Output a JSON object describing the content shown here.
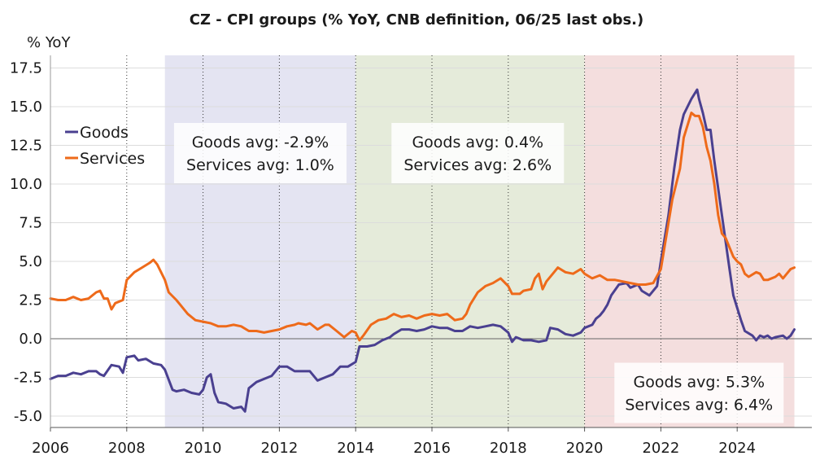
{
  "chart_data": {
    "type": "line",
    "title": "CZ - CPI groups (% YoY, CNB definition, 06/25 last obs.)",
    "ylabel": "% YoY",
    "xlim": [
      2006.0,
      2025.7
    ],
    "ylim": [
      -5.5,
      18.3
    ],
    "xticks": [
      2006,
      2008,
      2010,
      2012,
      2014,
      2016,
      2018,
      2020,
      2022,
      2024
    ],
    "yticks": [
      -5.0,
      -2.5,
      0.0,
      2.5,
      5.0,
      7.5,
      10.0,
      12.5,
      15.0,
      17.5
    ],
    "ytick_labels": [
      "-5.0",
      "-2.5",
      "0.0",
      "2.5",
      "5.0",
      "7.5",
      "10.0",
      "12.5",
      "15.0",
      "17.5"
    ],
    "grid": "vertical dotted at year ticks, horizontal light",
    "legend": "top-left",
    "regions": [
      {
        "x0": 2009.0,
        "x1": 2014.0,
        "color": "#e4e4f2"
      },
      {
        "x0": 2014.0,
        "x1": 2020.0,
        "color": "#e5ebda"
      },
      {
        "x0": 2020.0,
        "x1": 2025.5,
        "color": "#f4dede"
      }
    ],
    "annotations": [
      {
        "lines": [
          "Goods avg: -2.9%",
          "Services avg: 1.0%"
        ],
        "anchor": [
          2011.5,
          12.0
        ]
      },
      {
        "lines": [
          "Goods avg: 0.4%",
          "Services avg: 2.6%"
        ],
        "anchor": [
          2017.2,
          12.0
        ]
      },
      {
        "lines": [
          "Goods avg: 5.3%",
          "Services avg: 6.4%"
        ],
        "anchor": [
          2023.0,
          -3.5
        ]
      }
    ],
    "series": [
      {
        "name": "Goods",
        "color": "#4a4090",
        "points": [
          [
            2006.0,
            -2.6
          ],
          [
            2006.2,
            -2.4
          ],
          [
            2006.4,
            -2.4
          ],
          [
            2006.6,
            -2.2
          ],
          [
            2006.8,
            -2.3
          ],
          [
            2007.0,
            -2.1
          ],
          [
            2007.2,
            -2.1
          ],
          [
            2007.3,
            -2.3
          ],
          [
            2007.4,
            -2.4
          ],
          [
            2007.6,
            -1.7
          ],
          [
            2007.8,
            -1.8
          ],
          [
            2007.9,
            -2.2
          ],
          [
            2008.0,
            -1.2
          ],
          [
            2008.2,
            -1.1
          ],
          [
            2008.3,
            -1.4
          ],
          [
            2008.5,
            -1.3
          ],
          [
            2008.7,
            -1.6
          ],
          [
            2008.9,
            -1.7
          ],
          [
            2009.0,
            -2.0
          ],
          [
            2009.2,
            -3.3
          ],
          [
            2009.3,
            -3.4
          ],
          [
            2009.5,
            -3.3
          ],
          [
            2009.7,
            -3.5
          ],
          [
            2009.9,
            -3.6
          ],
          [
            2010.0,
            -3.3
          ],
          [
            2010.1,
            -2.5
          ],
          [
            2010.2,
            -2.3
          ],
          [
            2010.3,
            -3.5
          ],
          [
            2010.4,
            -4.1
          ],
          [
            2010.6,
            -4.2
          ],
          [
            2010.8,
            -4.5
          ],
          [
            2011.0,
            -4.4
          ],
          [
            2011.1,
            -4.7
          ],
          [
            2011.2,
            -3.2
          ],
          [
            2011.4,
            -2.8
          ],
          [
            2011.6,
            -2.6
          ],
          [
            2011.8,
            -2.4
          ],
          [
            2012.0,
            -1.8
          ],
          [
            2012.2,
            -1.8
          ],
          [
            2012.4,
            -2.1
          ],
          [
            2012.6,
            -2.1
          ],
          [
            2012.8,
            -2.1
          ],
          [
            2013.0,
            -2.7
          ],
          [
            2013.2,
            -2.5
          ],
          [
            2013.4,
            -2.3
          ],
          [
            2013.6,
            -1.8
          ],
          [
            2013.8,
            -1.8
          ],
          [
            2014.0,
            -1.5
          ],
          [
            2014.1,
            -0.5
          ],
          [
            2014.3,
            -0.5
          ],
          [
            2014.5,
            -0.4
          ],
          [
            2014.7,
            -0.1
          ],
          [
            2014.9,
            0.1
          ],
          [
            2015.0,
            0.3
          ],
          [
            2015.2,
            0.6
          ],
          [
            2015.4,
            0.6
          ],
          [
            2015.6,
            0.5
          ],
          [
            2015.8,
            0.6
          ],
          [
            2016.0,
            0.8
          ],
          [
            2016.2,
            0.7
          ],
          [
            2016.4,
            0.7
          ],
          [
            2016.6,
            0.5
          ],
          [
            2016.8,
            0.5
          ],
          [
            2017.0,
            0.8
          ],
          [
            2017.2,
            0.7
          ],
          [
            2017.4,
            0.8
          ],
          [
            2017.6,
            0.9
          ],
          [
            2017.8,
            0.8
          ],
          [
            2018.0,
            0.4
          ],
          [
            2018.1,
            -0.2
          ],
          [
            2018.2,
            0.1
          ],
          [
            2018.4,
            -0.1
          ],
          [
            2018.6,
            -0.1
          ],
          [
            2018.8,
            -0.2
          ],
          [
            2019.0,
            -0.1
          ],
          [
            2019.1,
            0.7
          ],
          [
            2019.3,
            0.6
          ],
          [
            2019.5,
            0.3
          ],
          [
            2019.7,
            0.2
          ],
          [
            2019.9,
            0.4
          ],
          [
            2020.0,
            0.7
          ],
          [
            2020.2,
            0.9
          ],
          [
            2020.3,
            1.3
          ],
          [
            2020.4,
            1.5
          ],
          [
            2020.5,
            1.8
          ],
          [
            2020.6,
            2.2
          ],
          [
            2020.7,
            2.8
          ],
          [
            2020.9,
            3.5
          ],
          [
            2021.1,
            3.6
          ],
          [
            2021.2,
            3.3
          ],
          [
            2021.4,
            3.5
          ],
          [
            2021.5,
            3.1
          ],
          [
            2021.7,
            2.8
          ],
          [
            2021.9,
            3.4
          ],
          [
            2022.0,
            5.0
          ],
          [
            2022.2,
            8.0
          ],
          [
            2022.35,
            11.0
          ],
          [
            2022.5,
            13.5
          ],
          [
            2022.6,
            14.5
          ],
          [
            2022.8,
            15.5
          ],
          [
            2022.95,
            16.1
          ],
          [
            2023.0,
            15.5
          ],
          [
            2023.1,
            14.6
          ],
          [
            2023.2,
            13.5
          ],
          [
            2023.3,
            13.5
          ],
          [
            2023.4,
            11.5
          ],
          [
            2023.6,
            8.0
          ],
          [
            2023.8,
            4.5
          ],
          [
            2023.9,
            2.8
          ],
          [
            2024.0,
            2.0
          ],
          [
            2024.1,
            1.2
          ],
          [
            2024.2,
            0.5
          ],
          [
            2024.4,
            0.2
          ],
          [
            2024.5,
            -0.1
          ],
          [
            2024.6,
            0.2
          ],
          [
            2024.7,
            0.1
          ],
          [
            2024.8,
            0.2
          ],
          [
            2024.9,
            0.0
          ],
          [
            2025.0,
            0.1
          ],
          [
            2025.2,
            0.2
          ],
          [
            2025.3,
            0.0
          ],
          [
            2025.4,
            0.2
          ],
          [
            2025.5,
            0.6
          ]
        ]
      },
      {
        "name": "Services",
        "color": "#ee6a1a",
        "points": [
          [
            2006.0,
            2.6
          ],
          [
            2006.2,
            2.5
          ],
          [
            2006.4,
            2.5
          ],
          [
            2006.6,
            2.7
          ],
          [
            2006.8,
            2.5
          ],
          [
            2007.0,
            2.6
          ],
          [
            2007.2,
            3.0
          ],
          [
            2007.3,
            3.1
          ],
          [
            2007.4,
            2.6
          ],
          [
            2007.5,
            2.6
          ],
          [
            2007.6,
            1.9
          ],
          [
            2007.7,
            2.3
          ],
          [
            2007.9,
            2.5
          ],
          [
            2008.0,
            3.8
          ],
          [
            2008.2,
            4.3
          ],
          [
            2008.4,
            4.6
          ],
          [
            2008.6,
            4.9
          ],
          [
            2008.7,
            5.1
          ],
          [
            2008.8,
            4.8
          ],
          [
            2009.0,
            3.8
          ],
          [
            2009.1,
            3.0
          ],
          [
            2009.3,
            2.5
          ],
          [
            2009.4,
            2.2
          ],
          [
            2009.6,
            1.6
          ],
          [
            2009.8,
            1.2
          ],
          [
            2010.0,
            1.1
          ],
          [
            2010.2,
            1.0
          ],
          [
            2010.4,
            0.8
          ],
          [
            2010.6,
            0.8
          ],
          [
            2010.8,
            0.9
          ],
          [
            2011.0,
            0.8
          ],
          [
            2011.2,
            0.5
          ],
          [
            2011.4,
            0.5
          ],
          [
            2011.6,
            0.4
          ],
          [
            2011.8,
            0.5
          ],
          [
            2012.0,
            0.6
          ],
          [
            2012.2,
            0.8
          ],
          [
            2012.4,
            0.9
          ],
          [
            2012.5,
            1.0
          ],
          [
            2012.7,
            0.9
          ],
          [
            2012.8,
            1.0
          ],
          [
            2013.0,
            0.6
          ],
          [
            2013.2,
            0.9
          ],
          [
            2013.3,
            0.9
          ],
          [
            2013.5,
            0.5
          ],
          [
            2013.7,
            0.1
          ],
          [
            2013.9,
            0.5
          ],
          [
            2014.0,
            0.4
          ],
          [
            2014.1,
            -0.1
          ],
          [
            2014.2,
            0.2
          ],
          [
            2014.4,
            0.9
          ],
          [
            2014.6,
            1.2
          ],
          [
            2014.8,
            1.3
          ],
          [
            2015.0,
            1.6
          ],
          [
            2015.2,
            1.4
          ],
          [
            2015.4,
            1.5
          ],
          [
            2015.6,
            1.3
          ],
          [
            2015.8,
            1.5
          ],
          [
            2016.0,
            1.6
          ],
          [
            2016.2,
            1.5
          ],
          [
            2016.4,
            1.6
          ],
          [
            2016.6,
            1.2
          ],
          [
            2016.8,
            1.3
          ],
          [
            2016.9,
            1.6
          ],
          [
            2017.0,
            2.2
          ],
          [
            2017.2,
            3.0
          ],
          [
            2017.4,
            3.4
          ],
          [
            2017.6,
            3.6
          ],
          [
            2017.8,
            3.9
          ],
          [
            2018.0,
            3.4
          ],
          [
            2018.1,
            2.9
          ],
          [
            2018.3,
            2.9
          ],
          [
            2018.4,
            3.1
          ],
          [
            2018.6,
            3.2
          ],
          [
            2018.7,
            3.9
          ],
          [
            2018.8,
            4.2
          ],
          [
            2018.9,
            3.2
          ],
          [
            2019.0,
            3.7
          ],
          [
            2019.2,
            4.3
          ],
          [
            2019.3,
            4.6
          ],
          [
            2019.5,
            4.3
          ],
          [
            2019.7,
            4.2
          ],
          [
            2019.9,
            4.5
          ],
          [
            2020.0,
            4.2
          ],
          [
            2020.2,
            3.9
          ],
          [
            2020.4,
            4.1
          ],
          [
            2020.6,
            3.8
          ],
          [
            2020.8,
            3.8
          ],
          [
            2021.0,
            3.7
          ],
          [
            2021.2,
            3.6
          ],
          [
            2021.4,
            3.5
          ],
          [
            2021.6,
            3.5
          ],
          [
            2021.8,
            3.6
          ],
          [
            2022.0,
            4.5
          ],
          [
            2022.1,
            6.0
          ],
          [
            2022.2,
            7.5
          ],
          [
            2022.3,
            9.0
          ],
          [
            2022.4,
            10.0
          ],
          [
            2022.5,
            11.0
          ],
          [
            2022.6,
            13.0
          ],
          [
            2022.8,
            14.6
          ],
          [
            2022.9,
            14.4
          ],
          [
            2023.0,
            14.4
          ],
          [
            2023.1,
            13.7
          ],
          [
            2023.2,
            12.4
          ],
          [
            2023.3,
            11.5
          ],
          [
            2023.4,
            10.0
          ],
          [
            2023.5,
            8.0
          ],
          [
            2023.6,
            6.8
          ],
          [
            2023.7,
            6.5
          ],
          [
            2023.8,
            5.9
          ],
          [
            2023.9,
            5.3
          ],
          [
            2024.0,
            5.0
          ],
          [
            2024.1,
            4.8
          ],
          [
            2024.2,
            4.2
          ],
          [
            2024.3,
            4.0
          ],
          [
            2024.5,
            4.3
          ],
          [
            2024.6,
            4.2
          ],
          [
            2024.7,
            3.8
          ],
          [
            2024.8,
            3.8
          ],
          [
            2025.0,
            4.0
          ],
          [
            2025.1,
            4.2
          ],
          [
            2025.2,
            3.9
          ],
          [
            2025.3,
            4.2
          ],
          [
            2025.4,
            4.5
          ],
          [
            2025.5,
            4.6
          ]
        ]
      }
    ]
  }
}
